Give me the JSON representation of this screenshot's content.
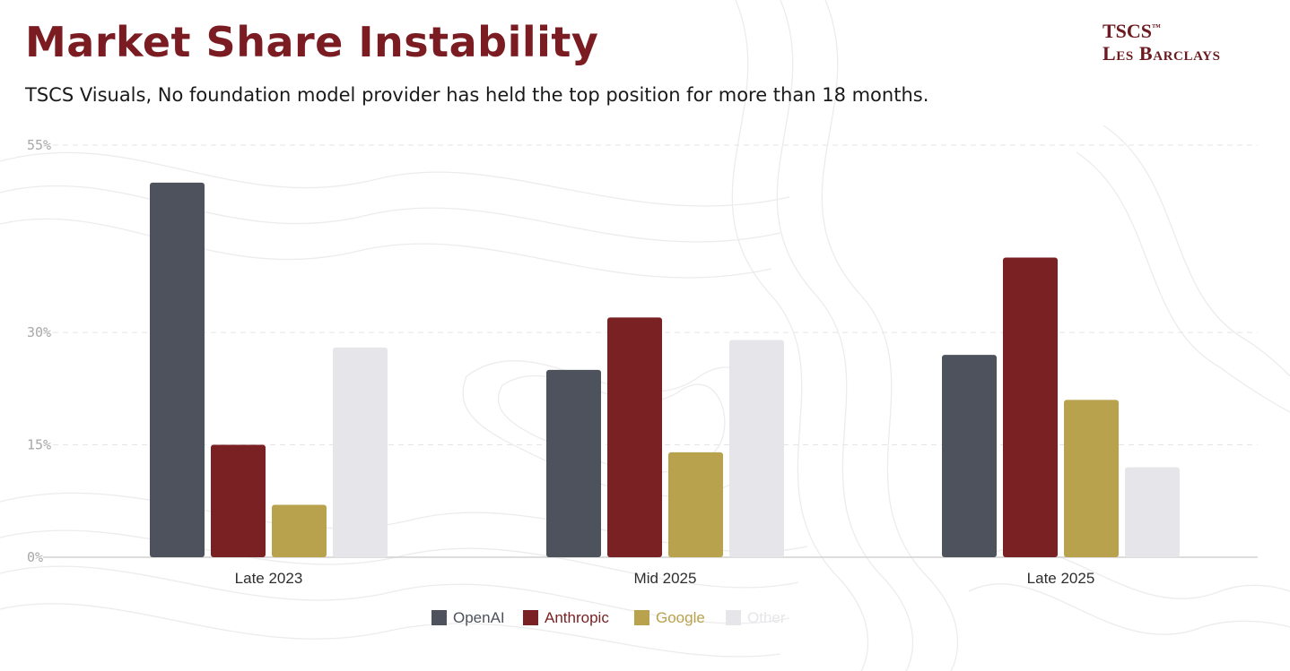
{
  "header": {
    "title": "Market Share Instability",
    "subtitle": "TSCS Visuals, No foundation model provider has held the top position for more than 18 months."
  },
  "brand": {
    "line1": "TSCS",
    "trademark": "™",
    "line2": "Les Barclays"
  },
  "colors": {
    "title": "#7a1c22",
    "openai": "#4d525c",
    "anthropic": "#7a2124",
    "google": "#b9a24d",
    "other": "#e6e6ea"
  },
  "chart_data": {
    "type": "bar",
    "categories": [
      "Late 2023",
      "Mid 2025",
      "Late 2025"
    ],
    "series": [
      {
        "name": "OpenAI",
        "values": [
          50,
          25,
          27
        ]
      },
      {
        "name": "Anthropic",
        "values": [
          15,
          32,
          40
        ]
      },
      {
        "name": "Google",
        "values": [
          7,
          14,
          21
        ]
      },
      {
        "name": "Other",
        "values": [
          28,
          29,
          12
        ]
      }
    ],
    "y_ticks": [
      {
        "value": 0,
        "label": "0%"
      },
      {
        "value": 15,
        "label": "15%"
      },
      {
        "value": 30,
        "label": "30%"
      },
      {
        "value": 55,
        "label": "55%"
      }
    ],
    "ylim": [
      0,
      55
    ],
    "grid": true,
    "legend_position": "bottom-center"
  }
}
